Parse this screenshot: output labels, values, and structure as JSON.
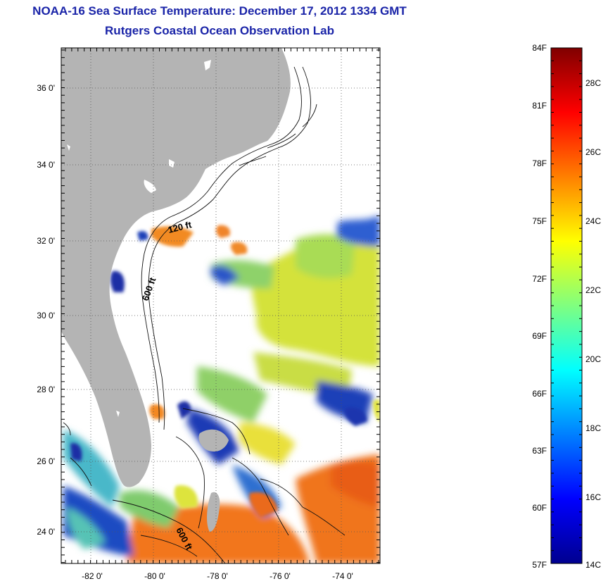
{
  "title": "NOAA-16 Sea Surface Temperature:  December 17, 2012 1334 GMT",
  "subtitle": "Rutgers Coastal Ocean Observation Lab",
  "lat_ticks": [
    "36 0'",
    "34 0'",
    "32 0'",
    "30 0'",
    "28 0'",
    "26 0'",
    "24 0'"
  ],
  "lon_ticks": [
    "-82 0'",
    "-80 0'",
    "-78 0'",
    "-76 0'",
    "-74 0'"
  ],
  "contour_labels": [
    "120 ft",
    "600 ft",
    "600 ft"
  ],
  "colorbar": {
    "fahrenheit": [
      "84F",
      "81F",
      "78F",
      "75F",
      "72F",
      "69F",
      "66F",
      "63F",
      "60F",
      "57F"
    ],
    "celsius": [
      "28C",
      "26C",
      "24C",
      "22C",
      "20C",
      "18C",
      "16C",
      "14C"
    ],
    "min_f": 57,
    "max_f": 84
  },
  "colors": {
    "title": "#1a24a8",
    "land": "#b4b4b4",
    "no_data": "#ffffff"
  }
}
